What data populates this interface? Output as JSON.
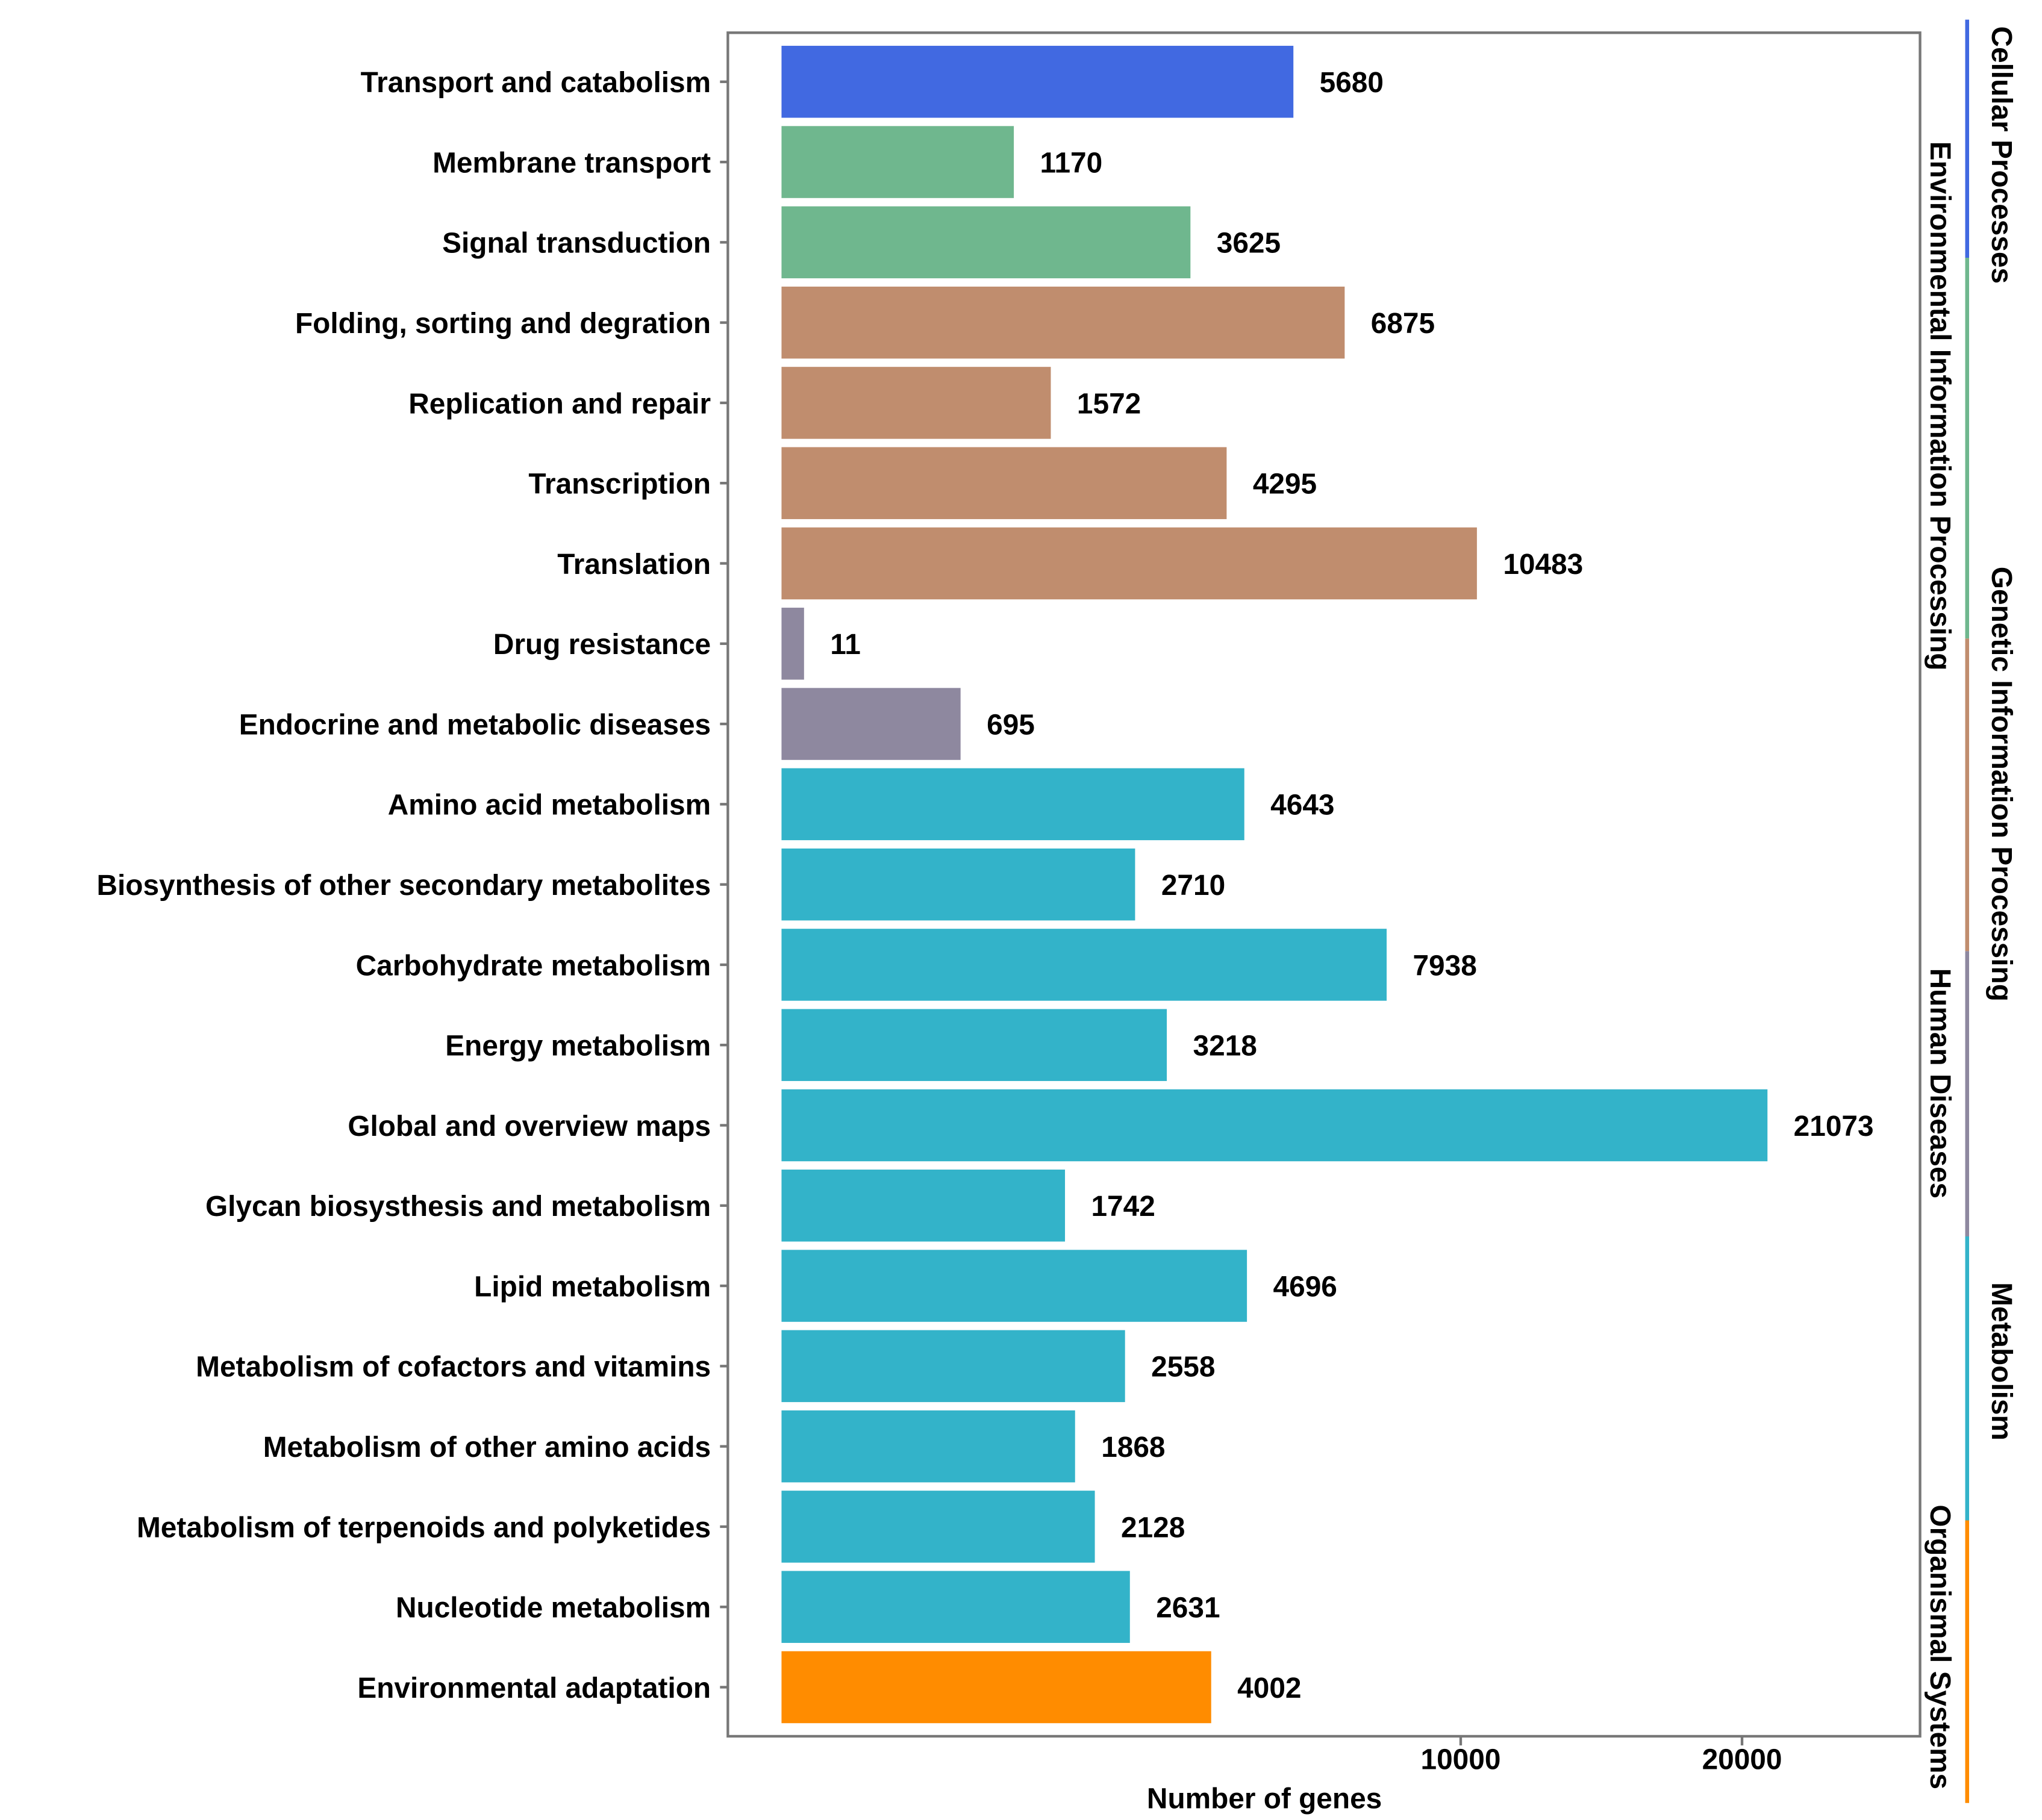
{
  "chart_data": {
    "type": "bar",
    "orientation": "horizontal",
    "xlabel": "Number of genes",
    "x_scale": "sqrt",
    "x_ticks": [
      10000,
      20000
    ],
    "x_tick_labels": [
      "10000",
      "20000"
    ],
    "categories": [
      "Transport and catabolism",
      "Membrane transport",
      "Signal transduction",
      "Folding, sorting and degration",
      "Replication and repair",
      "Transcription",
      "Translation",
      "Drug resistance",
      "Endocrine and metabolic diseases",
      "Amino acid metabolism",
      "Biosynthesis of other secondary metabolites",
      "Carbohydrate metabolism",
      "Energy metabolism",
      "Global and overview maps",
      "Glycan biosysthesis and metabolism",
      "Lipid metabolism",
      "Metabolism of cofactors and vitamins",
      "Metabolism of other amino acids",
      "Metabolism of terpenoids and polyketides",
      "Nucleotide metabolism",
      "Environmental adaptation"
    ],
    "values": [
      5680,
      1170,
      3625,
      6875,
      1572,
      4295,
      10483,
      11,
      695,
      4643,
      2710,
      7938,
      3218,
      21073,
      1742,
      4696,
      2558,
      1868,
      2128,
      2631,
      4002
    ],
    "groups": [
      {
        "name": "Cellular Processes",
        "color": "#4169E1",
        "count": 1
      },
      {
        "name": "Environmental Information Processing",
        "color": "#6FB78E",
        "count": 2
      },
      {
        "name": "Genetic Information Processing",
        "color": "#C08D6E",
        "count": 4
      },
      {
        "name": "Human Diseases",
        "color": "#8E889F",
        "count": 2
      },
      {
        "name": "Metabolism",
        "color": "#33B3C9",
        "count": 11
      },
      {
        "name": "Organismal Systems",
        "color": "#FF8C00",
        "count": 1
      }
    ]
  }
}
